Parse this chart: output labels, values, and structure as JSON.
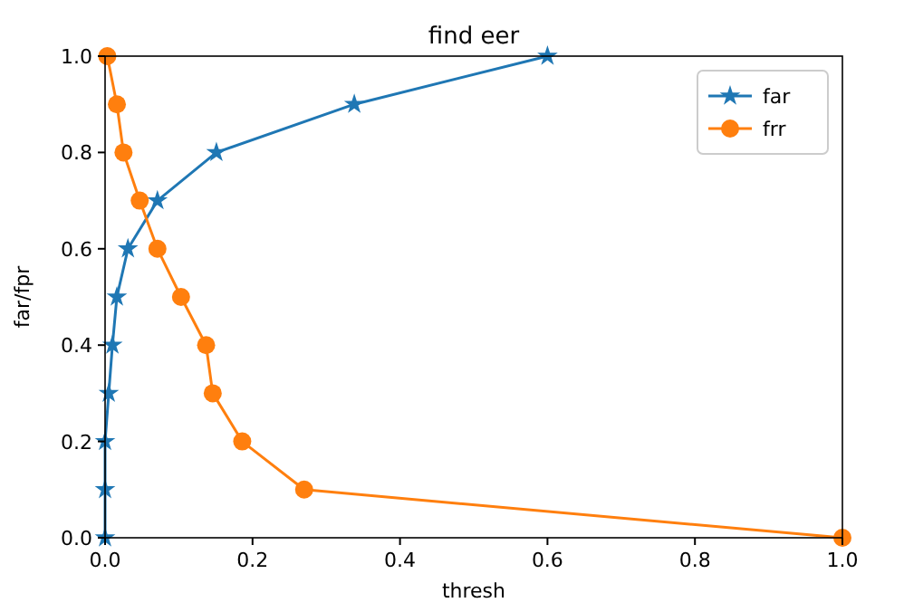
{
  "chart_data": {
    "type": "line",
    "title": "find eer",
    "xlabel": "thresh",
    "ylabel": "far/fpr",
    "xlim": [
      0,
      1
    ],
    "ylim": [
      0,
      1
    ],
    "xticks": [
      {
        "value": 0,
        "label": "0.0"
      },
      0.2,
      0.4,
      0.6,
      0.8,
      {
        "value": 1,
        "label": "1.0"
      }
    ],
    "yticks": [
      {
        "value": 0,
        "label": "0.0"
      },
      0.2,
      0.4,
      0.6,
      0.8,
      {
        "value": 1,
        "label": "1.0"
      }
    ],
    "legend": "top right",
    "grid": false,
    "series": [
      {
        "name": "far",
        "color": "#1f77b4",
        "marker": "star",
        "x": [
          0,
          0,
          0,
          0.005,
          0.01,
          0.016,
          0.031,
          0.071,
          0.151,
          0.338,
          0.6
        ],
        "values": [
          0,
          0.1,
          0.2,
          0.3,
          0.4,
          0.5,
          0.6,
          0.7,
          0.8,
          0.9,
          1.0
        ]
      },
      {
        "name": "frr",
        "color": "#ff7f0e",
        "marker": "circle",
        "x": [
          0.003,
          0.016,
          0.025,
          0.047,
          0.071,
          0.103,
          0.137,
          0.146,
          0.186,
          0.27,
          1.0
        ],
        "values": [
          1.0,
          0.9,
          0.8,
          0.7,
          0.6,
          0.5,
          0.4,
          0.3,
          0.2,
          0.1,
          0.0
        ]
      }
    ]
  }
}
